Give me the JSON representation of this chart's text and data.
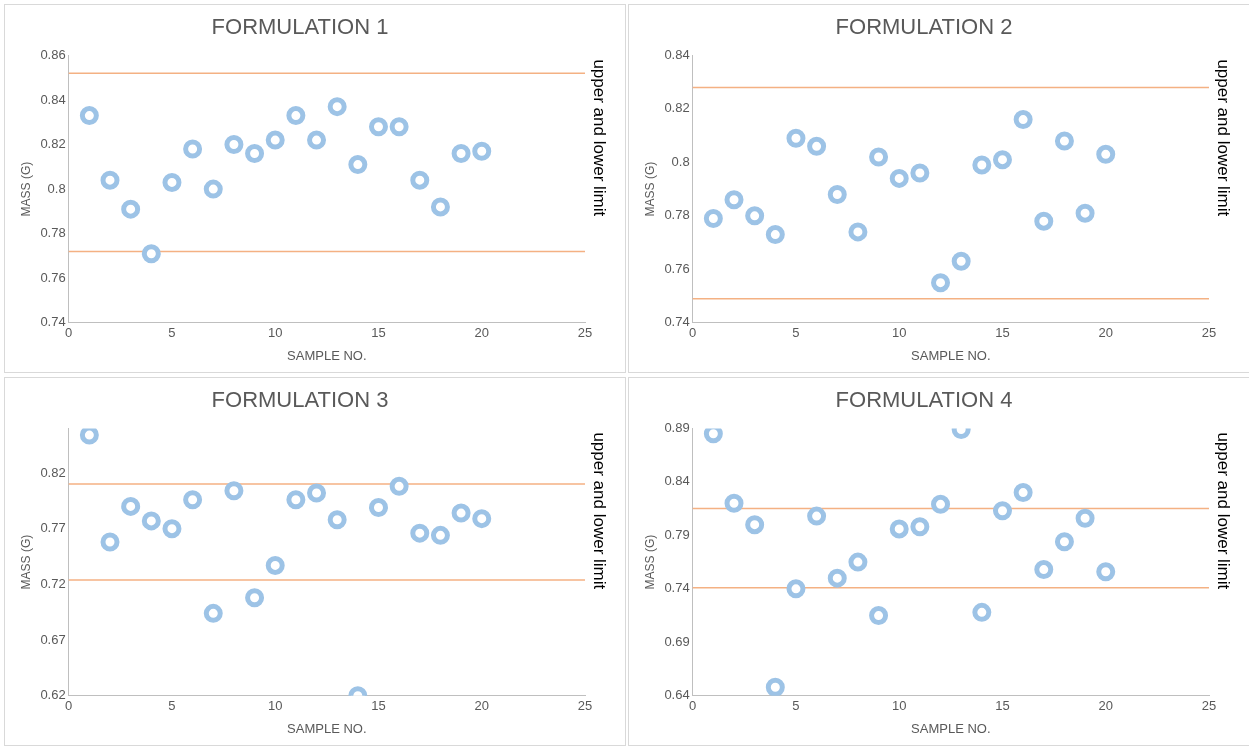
{
  "chart_data": [
    {
      "type": "scatter",
      "title": "FORMULATION 1",
      "xlabel": "SAMPLE NO.",
      "ylabel": "MASS (G)",
      "marker": "circle",
      "x": [
        1,
        2,
        3,
        4,
        5,
        6,
        7,
        8,
        9,
        10,
        11,
        12,
        13,
        14,
        15,
        16,
        17,
        18,
        19,
        20
      ],
      "series": [
        {
          "color": "#9dc3e6",
          "values": [
            0.833,
            0.804,
            0.791,
            0.771,
            0.803,
            0.818,
            0.8,
            0.82,
            0.816,
            0.822,
            0.833,
            0.822,
            0.837,
            0.811,
            0.828,
            0.828,
            0.804,
            0.792,
            0.816,
            0.817
          ]
        }
      ],
      "xlim": [
        0,
        25
      ],
      "xticks": [
        0,
        5,
        10,
        15,
        20,
        25
      ],
      "ylim": [
        0.74,
        0.86
      ],
      "yticks": [
        0.74,
        0.76,
        0.78,
        0.8,
        0.82,
        0.84,
        0.86
      ],
      "ref_lines": [
        {
          "axis": "y",
          "value": 0.852,
          "color": "#f4b183"
        },
        {
          "axis": "y",
          "value": 0.772,
          "color": "#f4b183"
        }
      ],
      "annotations": [
        "upper and lower limit"
      ]
    },
    {
      "type": "scatter",
      "title": "FORMULATION 2",
      "xlabel": "SAMPLE NO.",
      "ylabel": "MASS (G)",
      "marker": "circle",
      "x": [
        1,
        2,
        3,
        4,
        5,
        6,
        7,
        8,
        9,
        10,
        11,
        12,
        13,
        14,
        15,
        16,
        17,
        18,
        19,
        20
      ],
      "series": [
        {
          "color": "#9dc3e6",
          "values": [
            0.779,
            0.786,
            0.78,
            0.773,
            0.809,
            0.806,
            0.788,
            0.774,
            0.802,
            0.794,
            0.796,
            0.755,
            0.763,
            0.799,
            0.801,
            0.816,
            0.778,
            0.808,
            0.781,
            0.803
          ]
        }
      ],
      "xlim": [
        0,
        25
      ],
      "xticks": [
        0,
        5,
        10,
        15,
        20,
        25
      ],
      "ylim": [
        0.74,
        0.84
      ],
      "yticks": [
        0.74,
        0.76,
        0.78,
        0.8,
        0.82,
        0.84
      ],
      "ref_lines": [
        {
          "axis": "y",
          "value": 0.828,
          "color": "#f4b183"
        },
        {
          "axis": "y",
          "value": 0.749,
          "color": "#f4b183"
        }
      ],
      "annotations": [
        "upper and lower limit"
      ]
    },
    {
      "type": "scatter",
      "title": "FORMULATION 3",
      "xlabel": "SAMPLE NO.",
      "ylabel": "MASS (G)",
      "marker": "circle",
      "x": [
        1,
        2,
        3,
        4,
        5,
        6,
        7,
        8,
        9,
        10,
        11,
        12,
        13,
        14,
        15,
        16,
        17,
        18,
        19,
        20
      ],
      "series": [
        {
          "color": "#9dc3e6",
          "values": [
            0.854,
            0.758,
            0.79,
            0.777,
            0.77,
            0.796,
            0.694,
            0.804,
            0.708,
            0.737,
            0.796,
            0.802,
            0.778,
            0.62,
            0.789,
            0.808,
            0.766,
            0.764,
            0.784,
            0.779
          ]
        }
      ],
      "xlim": [
        0,
        25
      ],
      "xticks": [
        0,
        5,
        10,
        15,
        20,
        25
      ],
      "ylim": [
        0.62,
        0.86
      ],
      "yticks": [
        0.62,
        0.67,
        0.72,
        0.77,
        0.82
      ],
      "ref_lines": [
        {
          "axis": "y",
          "value": 0.81,
          "color": "#f4b183"
        },
        {
          "axis": "y",
          "value": 0.724,
          "color": "#f4b183"
        }
      ],
      "annotations": [
        "upper and lower limit"
      ]
    },
    {
      "type": "scatter",
      "title": "FORMULATION 4",
      "xlabel": "SAMPLE NO.",
      "ylabel": "MASS (G)",
      "marker": "circle",
      "x": [
        1,
        2,
        3,
        4,
        5,
        6,
        7,
        8,
        9,
        10,
        11,
        12,
        13,
        14,
        15,
        16,
        17,
        18,
        19,
        20
      ],
      "series": [
        {
          "color": "#9dc3e6",
          "values": [
            0.885,
            0.82,
            0.8,
            0.648,
            0.74,
            0.808,
            0.75,
            0.765,
            0.715,
            0.796,
            0.798,
            0.819,
            0.889,
            0.718,
            0.813,
            0.83,
            0.758,
            0.784,
            0.806,
            0.756
          ]
        }
      ],
      "xlim": [
        0,
        25
      ],
      "xticks": [
        0,
        5,
        10,
        15,
        20,
        25
      ],
      "ylim": [
        0.64,
        0.89
      ],
      "yticks": [
        0.64,
        0.69,
        0.74,
        0.79,
        0.84,
        0.89
      ],
      "ref_lines": [
        {
          "axis": "y",
          "value": 0.815,
          "color": "#f4b183"
        },
        {
          "axis": "y",
          "value": 0.741,
          "color": "#f4b183"
        }
      ],
      "annotations": [
        "upper and lower limit"
      ]
    }
  ]
}
